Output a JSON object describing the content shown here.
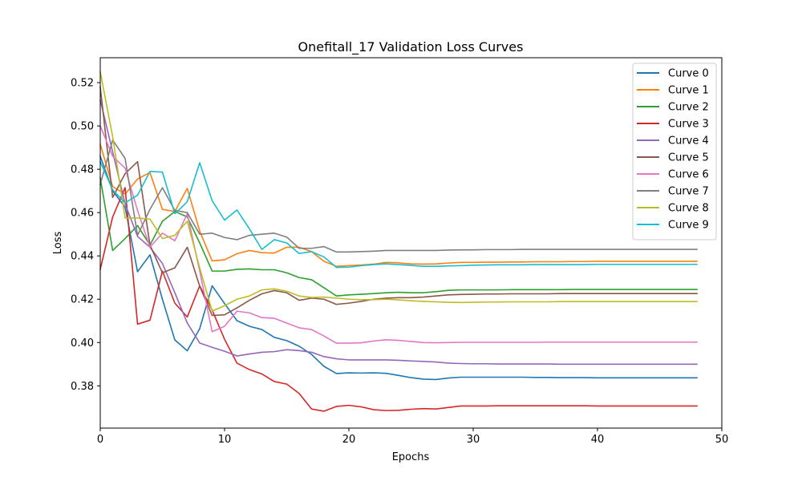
{
  "chart_data": {
    "type": "line",
    "title": "Onefitall_17 Validation Loss Curves",
    "xlabel": "Epochs",
    "ylabel": "Loss",
    "xlim": [
      0,
      50
    ],
    "ylim": [
      0.3605,
      0.5315
    ],
    "xticks": [
      0,
      10,
      20,
      30,
      40,
      50
    ],
    "yticks": [
      0.38,
      0.4,
      0.42,
      0.44,
      0.46,
      0.48,
      0.5,
      0.52
    ],
    "ytick_labels": [
      "0.38",
      "0.40",
      "0.42",
      "0.44",
      "0.46",
      "0.48",
      "0.50",
      "0.52"
    ],
    "legend_position": "top-right",
    "grid": false,
    "x": [
      0,
      1,
      2,
      3,
      4,
      5,
      6,
      7,
      8,
      9,
      10,
      11,
      12,
      13,
      14,
      15,
      16,
      17,
      18,
      19,
      20,
      21,
      22,
      23,
      24,
      25,
      26,
      27,
      28,
      29,
      30,
      31,
      32,
      33,
      34,
      35,
      36,
      37,
      38,
      39,
      40,
      41,
      42,
      43,
      44,
      45,
      46,
      47,
      48
    ],
    "series": [
      {
        "name": "Curve 0",
        "color": "#1f77b4",
        "values": [
          0.486,
          0.47,
          0.4625,
          0.4327,
          0.4405,
          0.42,
          0.4012,
          0.3962,
          0.4064,
          0.4262,
          0.418,
          0.4101,
          0.4075,
          0.406,
          0.4024,
          0.4009,
          0.3983,
          0.3945,
          0.389,
          0.3857,
          0.386,
          0.3859,
          0.386,
          0.3858,
          0.3848,
          0.3838,
          0.3831,
          0.3829,
          0.3836,
          0.384,
          0.384,
          0.384,
          0.384,
          0.384,
          0.384,
          0.3839,
          0.3839,
          0.3838,
          0.3838,
          0.3838,
          0.3837,
          0.3837,
          0.3837,
          0.3837,
          0.3837,
          0.3837,
          0.3837,
          0.3837,
          0.3837
        ]
      },
      {
        "name": "Curve 1",
        "color": "#ff7f0e",
        "values": [
          0.4915,
          0.472,
          0.4685,
          0.4755,
          0.4785,
          0.4615,
          0.4605,
          0.4712,
          0.4515,
          0.4377,
          0.4382,
          0.441,
          0.4425,
          0.4415,
          0.4413,
          0.444,
          0.444,
          0.442,
          0.4375,
          0.4352,
          0.4355,
          0.4358,
          0.4362,
          0.437,
          0.4368,
          0.4363,
          0.4362,
          0.4363,
          0.4367,
          0.437,
          0.437,
          0.4371,
          0.4371,
          0.4372,
          0.4372,
          0.4373,
          0.4373,
          0.4373,
          0.4374,
          0.4374,
          0.4375,
          0.4375,
          0.4375,
          0.4375,
          0.4375,
          0.4375,
          0.4375,
          0.4375,
          0.4375
        ]
      },
      {
        "name": "Curve 2",
        "color": "#2ca02c",
        "values": [
          0.476,
          0.4425,
          0.448,
          0.454,
          0.445,
          0.456,
          0.4605,
          0.458,
          0.446,
          0.433,
          0.433,
          0.4338,
          0.434,
          0.4336,
          0.4336,
          0.4322,
          0.43,
          0.429,
          0.4253,
          0.4215,
          0.422,
          0.4223,
          0.4226,
          0.423,
          0.4232,
          0.423,
          0.423,
          0.4235,
          0.4241,
          0.4243,
          0.4243,
          0.4243,
          0.4243,
          0.4244,
          0.4244,
          0.4244,
          0.4244,
          0.4244,
          0.4245,
          0.4245,
          0.4245,
          0.4245,
          0.4245,
          0.4245,
          0.4245,
          0.4245,
          0.4245,
          0.4245,
          0.4245
        ]
      },
      {
        "name": "Curve 3",
        "color": "#d62728",
        "values": [
          0.4338,
          0.458,
          0.4715,
          0.4085,
          0.4103,
          0.433,
          0.4182,
          0.4118,
          0.4262,
          0.415,
          0.4015,
          0.3905,
          0.3875,
          0.3855,
          0.382,
          0.3808,
          0.3765,
          0.3693,
          0.3683,
          0.3705,
          0.371,
          0.3703,
          0.369,
          0.3686,
          0.3687,
          0.3692,
          0.3695,
          0.3693,
          0.37,
          0.3707,
          0.3707,
          0.3707,
          0.3708,
          0.3708,
          0.3708,
          0.3708,
          0.3708,
          0.3708,
          0.3708,
          0.3708,
          0.3707,
          0.3707,
          0.3707,
          0.3707,
          0.3707,
          0.3707,
          0.3707,
          0.3707,
          0.3707
        ]
      },
      {
        "name": "Curve 4",
        "color": "#9467bd",
        "values": [
          0.512,
          0.488,
          0.464,
          0.449,
          0.444,
          0.4365,
          0.423,
          0.409,
          0.3998,
          0.3978,
          0.396,
          0.3938,
          0.3947,
          0.3955,
          0.3958,
          0.3967,
          0.3963,
          0.3955,
          0.3935,
          0.3925,
          0.392,
          0.392,
          0.392,
          0.392,
          0.3918,
          0.3915,
          0.3913,
          0.391,
          0.3905,
          0.3903,
          0.3902,
          0.3902,
          0.3901,
          0.3901,
          0.3901,
          0.3901,
          0.3901,
          0.39,
          0.39,
          0.39,
          0.39,
          0.39,
          0.39,
          0.39,
          0.39,
          0.39,
          0.39,
          0.39,
          0.39
        ]
      },
      {
        "name": "Curve 5",
        "color": "#8c564b",
        "values": [
          0.518,
          0.467,
          0.478,
          0.4835,
          0.445,
          0.4322,
          0.4345,
          0.444,
          0.426,
          0.4125,
          0.4128,
          0.416,
          0.4195,
          0.4225,
          0.424,
          0.423,
          0.4195,
          0.4205,
          0.42,
          0.4176,
          0.4182,
          0.419,
          0.42,
          0.4205,
          0.4207,
          0.4207,
          0.421,
          0.4215,
          0.422,
          0.4222,
          0.4223,
          0.4224,
          0.4224,
          0.4225,
          0.4225,
          0.4225,
          0.4225,
          0.4226,
          0.4226,
          0.4226,
          0.4226,
          0.4226,
          0.4226,
          0.4226,
          0.4226,
          0.4226,
          0.4226,
          0.4226,
          0.4226
        ]
      },
      {
        "name": "Curve 6",
        "color": "#e377c2",
        "values": [
          0.5,
          0.486,
          0.4805,
          0.461,
          0.444,
          0.4505,
          0.447,
          0.4595,
          0.433,
          0.405,
          0.4075,
          0.4145,
          0.4137,
          0.4115,
          0.4112,
          0.409,
          0.4068,
          0.406,
          0.403,
          0.3997,
          0.3997,
          0.3999,
          0.4007,
          0.4013,
          0.401,
          0.4005,
          0.4,
          0.3999,
          0.4,
          0.4001,
          0.4001,
          0.4001,
          0.4001,
          0.4001,
          0.4001,
          0.4001,
          0.4002,
          0.4002,
          0.4002,
          0.4002,
          0.4002,
          0.4002,
          0.4002,
          0.4002,
          0.4002,
          0.4002,
          0.4002,
          0.4002,
          0.4002
        ]
      },
      {
        "name": "Curve 7",
        "color": "#7f7f7f",
        "values": [
          0.473,
          0.4935,
          0.485,
          0.4495,
          0.4615,
          0.4715,
          0.461,
          0.46,
          0.45,
          0.4505,
          0.4485,
          0.4475,
          0.4495,
          0.45,
          0.4505,
          0.4487,
          0.4435,
          0.4435,
          0.4443,
          0.4418,
          0.4418,
          0.442,
          0.4422,
          0.4425,
          0.4425,
          0.4425,
          0.4425,
          0.4425,
          0.4427,
          0.4428,
          0.4428,
          0.4429,
          0.4429,
          0.4429,
          0.443,
          0.443,
          0.443,
          0.443,
          0.443,
          0.443,
          0.443,
          0.443,
          0.443,
          0.443,
          0.443,
          0.443,
          0.443,
          0.443,
          0.443
        ]
      },
      {
        "name": "Curve 8",
        "color": "#bcbd22",
        "values": [
          0.525,
          0.495,
          0.4575,
          0.4575,
          0.457,
          0.448,
          0.4495,
          0.456,
          0.4345,
          0.4145,
          0.417,
          0.42,
          0.4215,
          0.4243,
          0.4248,
          0.4237,
          0.4215,
          0.4208,
          0.421,
          0.4205,
          0.42,
          0.4198,
          0.4198,
          0.42,
          0.4197,
          0.4193,
          0.419,
          0.4188,
          0.4186,
          0.4185,
          0.4186,
          0.4187,
          0.4187,
          0.4188,
          0.4188,
          0.4188,
          0.4188,
          0.4189,
          0.4189,
          0.4189,
          0.4189,
          0.4189,
          0.4189,
          0.4189,
          0.4189,
          0.4189,
          0.4189,
          0.4189,
          0.4189
        ]
      },
      {
        "name": "Curve 9",
        "color": "#17becf",
        "values": [
          0.4835,
          0.4705,
          0.4645,
          0.468,
          0.479,
          0.4787,
          0.4595,
          0.465,
          0.483,
          0.4655,
          0.4565,
          0.4612,
          0.4525,
          0.443,
          0.4475,
          0.446,
          0.4411,
          0.442,
          0.4395,
          0.4347,
          0.4348,
          0.4355,
          0.436,
          0.4363,
          0.436,
          0.4356,
          0.4352,
          0.4352,
          0.4354,
          0.4355,
          0.4357,
          0.4358,
          0.4359,
          0.4359,
          0.4359,
          0.436,
          0.436,
          0.436,
          0.436,
          0.436,
          0.4361,
          0.4361,
          0.4361,
          0.4361,
          0.4361,
          0.4361,
          0.4361,
          0.4361,
          0.4361
        ]
      }
    ]
  }
}
